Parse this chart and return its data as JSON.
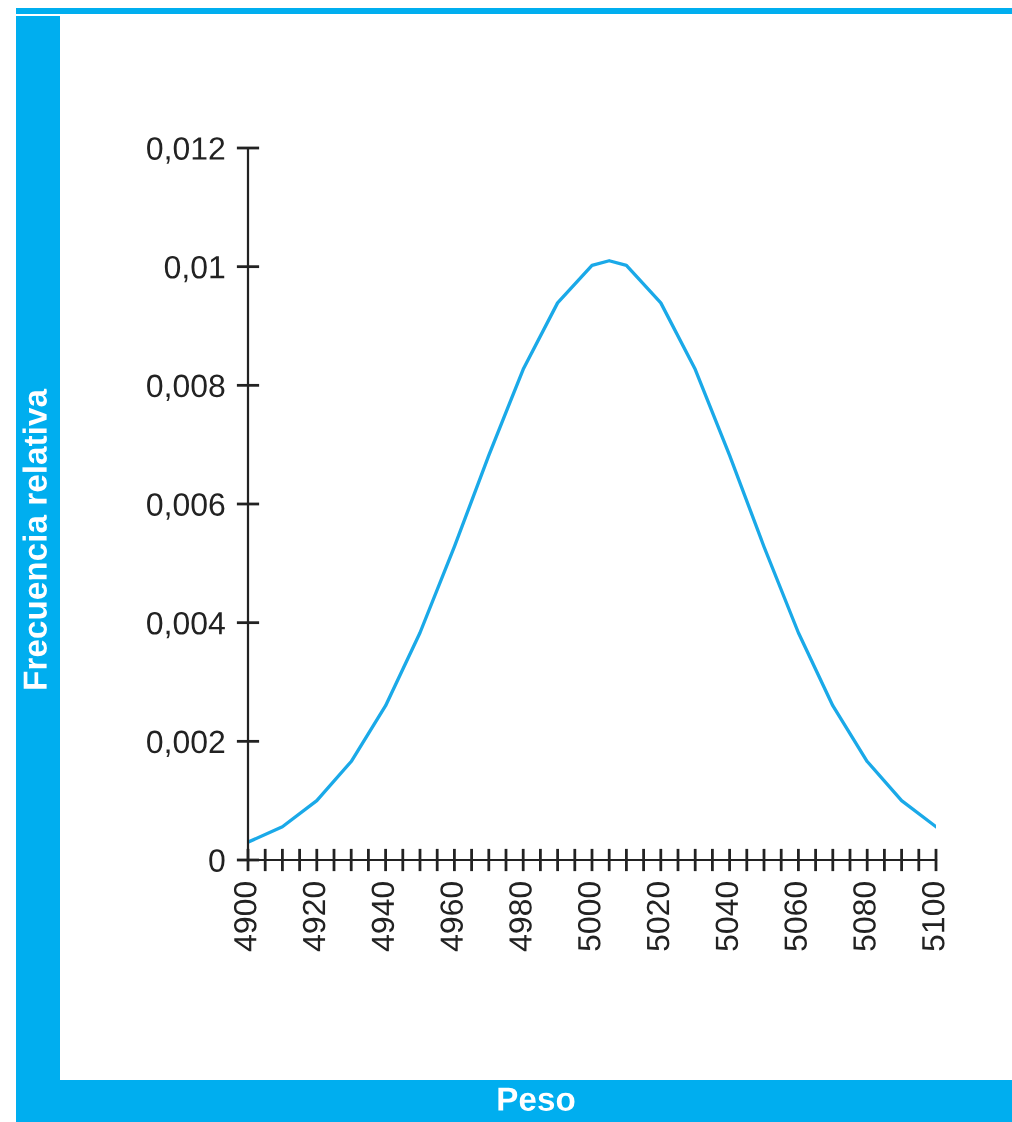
{
  "chart_data": {
    "type": "line",
    "xlabel": "Peso",
    "ylabel": "Frecuencia relativa",
    "x": [
      4900,
      4910,
      4920,
      4930,
      4940,
      4950,
      4960,
      4970,
      4980,
      4990,
      5000,
      5005,
      5010,
      5020,
      5030,
      5040,
      5050,
      5060,
      5070,
      5080,
      5090,
      5100
    ],
    "series": [
      {
        "color": "#1aa9e8",
        "values": [
          0.0003,
          0.00056,
          0.001,
          0.00166,
          0.0026,
          0.00383,
          0.00528,
          0.00682,
          0.00827,
          0.00939,
          0.01002,
          0.0101,
          0.01002,
          0.00939,
          0.00827,
          0.00682,
          0.00528,
          0.00383,
          0.0026,
          0.00166,
          0.001,
          0.00056
        ]
      }
    ],
    "xlim": [
      4900,
      5100
    ],
    "ylim": [
      0,
      0.012
    ],
    "xticks": [
      4900,
      {
        "value": 4905,
        "label": null
      },
      {
        "value": 4910,
        "label": null
      },
      {
        "value": 4915,
        "label": null
      },
      4920,
      {
        "value": 4925,
        "label": null
      },
      {
        "value": 4930,
        "label": null
      },
      {
        "value": 4935,
        "label": null
      },
      4940,
      {
        "value": 4945,
        "label": null
      },
      {
        "value": 4950,
        "label": null
      },
      {
        "value": 4955,
        "label": null
      },
      4960,
      {
        "value": 4965,
        "label": null
      },
      {
        "value": 4970,
        "label": null
      },
      {
        "value": 4975,
        "label": null
      },
      4980,
      {
        "value": 4985,
        "label": null
      },
      {
        "value": 4990,
        "label": null
      },
      {
        "value": 4995,
        "label": null
      },
      5000,
      {
        "value": 5005,
        "label": null
      },
      {
        "value": 5010,
        "label": null
      },
      {
        "value": 5015,
        "label": null
      },
      5020,
      {
        "value": 5025,
        "label": null
      },
      {
        "value": 5030,
        "label": null
      },
      {
        "value": 5035,
        "label": null
      },
      5040,
      {
        "value": 5045,
        "label": null
      },
      {
        "value": 5050,
        "label": null
      },
      {
        "value": 5055,
        "label": null
      },
      5060,
      {
        "value": 5065,
        "label": null
      },
      {
        "value": 5070,
        "label": null
      },
      {
        "value": 5075,
        "label": null
      },
      5080,
      {
        "value": 5085,
        "label": null
      },
      {
        "value": 5090,
        "label": null
      },
      {
        "value": 5095,
        "label": null
      },
      5100
    ],
    "yticks": [
      0,
      {
        "value": 0.002,
        "label": "0,002"
      },
      {
        "value": 0.004,
        "label": "0,004"
      },
      {
        "value": 0.006,
        "label": "0,006"
      },
      {
        "value": 0.008,
        "label": "0,008"
      },
      {
        "value": 0.01,
        "label": "0,01"
      },
      {
        "value": 0.012,
        "label": "0,012"
      }
    ],
    "grid": false,
    "legend": false,
    "marker": "none",
    "line_style": "solid"
  }
}
